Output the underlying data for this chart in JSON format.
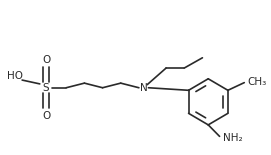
{
  "bg_color": "#ffffff",
  "line_color": "#2a2a2a",
  "lw": 1.2,
  "fs": 7.5,
  "xlim": [
    0,
    10.5
  ],
  "ylim": [
    0,
    6.0
  ],
  "figw": 2.71,
  "figh": 1.55,
  "dpi": 100
}
